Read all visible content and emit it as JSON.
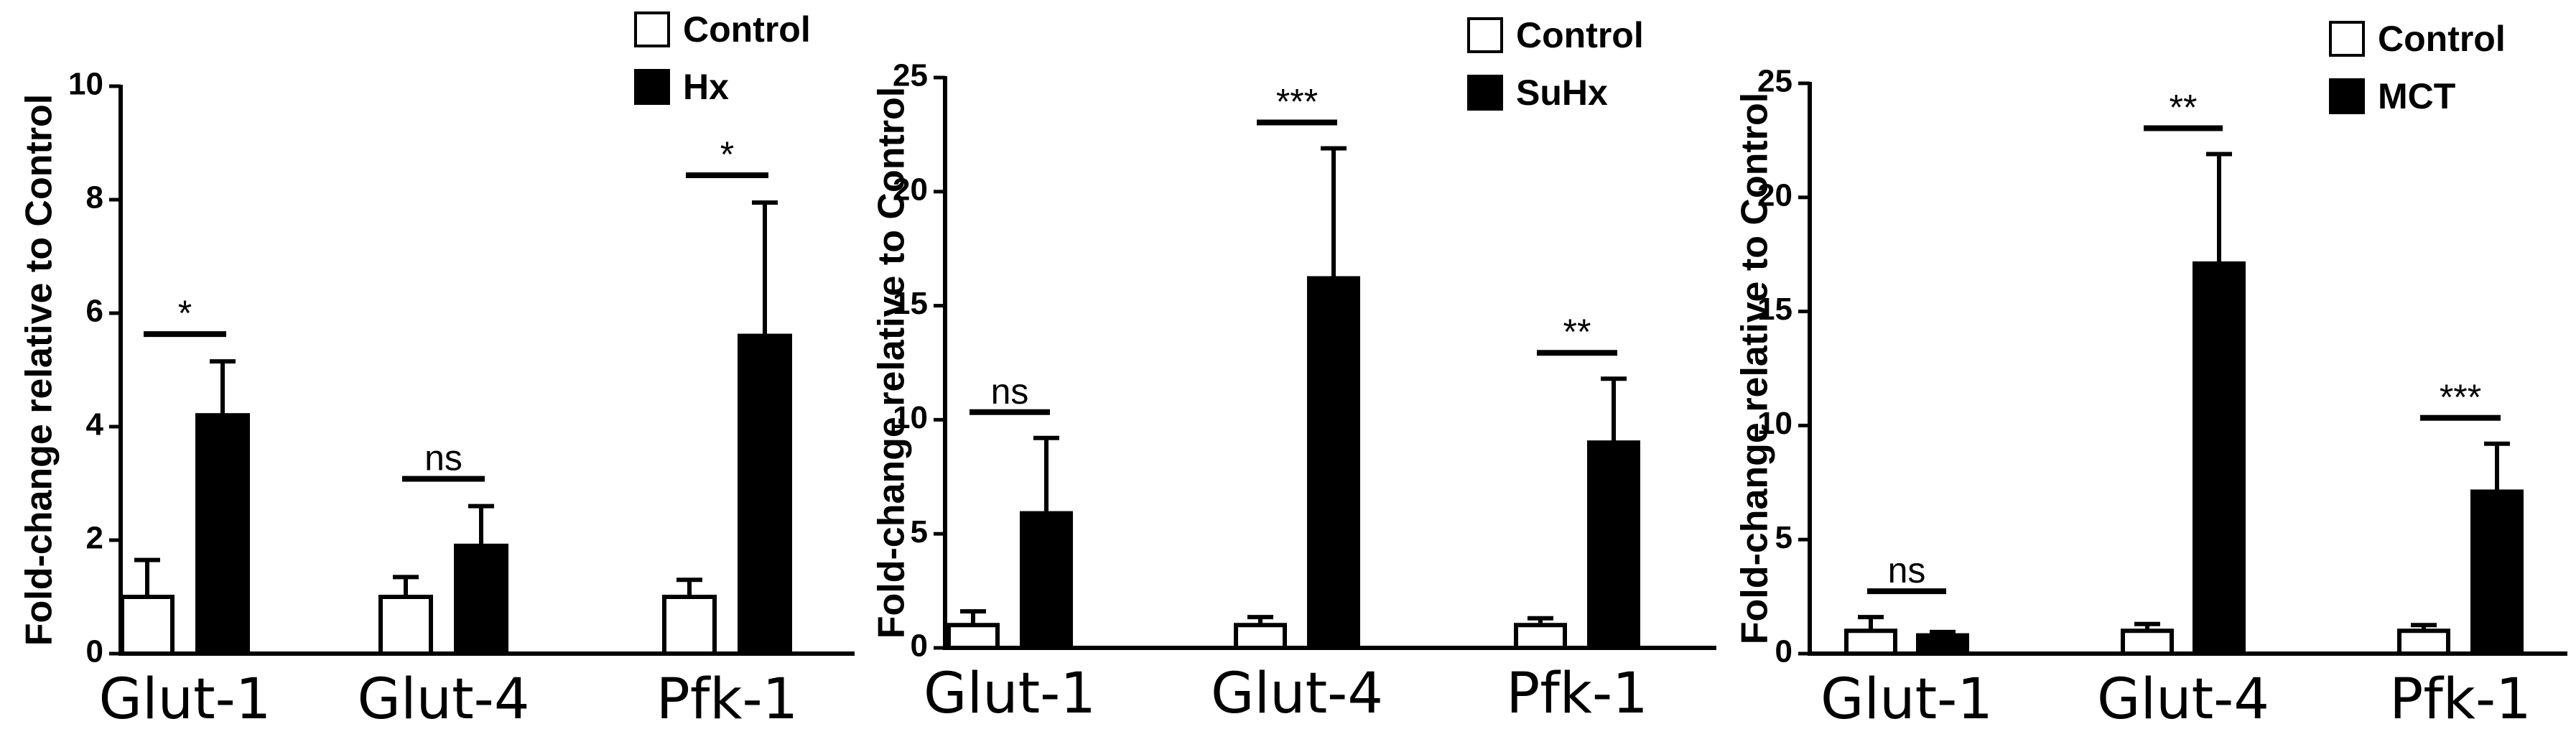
{
  "chart_data": [
    {
      "type": "bar",
      "ylabel": "Fold-change relative to Control",
      "categories": [
        "Glut-1",
        "Glut-4",
        "Pfk-1"
      ],
      "ylim": [
        0,
        10
      ],
      "yticks": [
        0,
        2,
        4,
        6,
        8,
        10
      ],
      "legend_position": "top-right",
      "series": [
        {
          "name": "Control",
          "color": "#ffffff",
          "values": [
            1.0,
            1.0,
            1.0
          ],
          "errors": [
            0.65,
            0.35,
            0.3
          ]
        },
        {
          "name": "Hx",
          "color": "#000000",
          "values": [
            4.2,
            1.9,
            5.6
          ],
          "errors": [
            0.95,
            0.7,
            2.35
          ]
        }
      ],
      "significance": [
        "*",
        "ns",
        "*"
      ]
    },
    {
      "type": "bar",
      "ylabel": "Fold-change relative to Control",
      "categories": [
        "Glut-1",
        "Glut-4",
        "Pfk-1"
      ],
      "ylim": [
        0,
        25
      ],
      "yticks": [
        0,
        5,
        10,
        15,
        20,
        25
      ],
      "legend_position": "top-right",
      "series": [
        {
          "name": "Control",
          "color": "#ffffff",
          "values": [
            1.0,
            1.0,
            1.0
          ],
          "errors": [
            0.6,
            0.35,
            0.3
          ]
        },
        {
          "name": "SuHx",
          "color": "#000000",
          "values": [
            5.9,
            16.2,
            9.0
          ],
          "errors": [
            3.3,
            5.7,
            2.8
          ]
        }
      ],
      "significance": [
        "ns",
        "***",
        "**"
      ]
    },
    {
      "type": "bar",
      "ylabel": "Fold-change relative to Control",
      "categories": [
        "Glut-1",
        "Glut-4",
        "Pfk-1"
      ],
      "ylim": [
        0,
        25
      ],
      "yticks": [
        0,
        5,
        10,
        15,
        20,
        25
      ],
      "legend_position": "top-right",
      "series": [
        {
          "name": "Control",
          "color": "#ffffff",
          "values": [
            1.0,
            1.0,
            1.0
          ],
          "errors": [
            0.6,
            0.3,
            0.25
          ]
        },
        {
          "name": "MCT",
          "color": "#000000",
          "values": [
            0.8,
            17.1,
            7.1
          ],
          "errors": [
            0.15,
            4.8,
            2.1
          ]
        }
      ],
      "significance": [
        "ns",
        "**",
        "***"
      ]
    }
  ]
}
